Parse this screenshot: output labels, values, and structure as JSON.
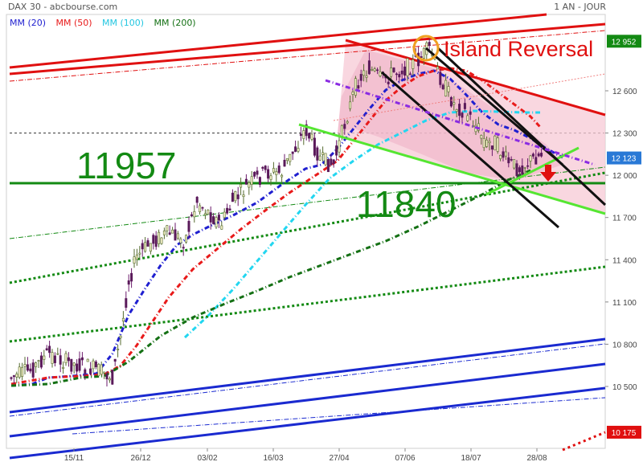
{
  "header": {
    "title": "DAX 30 - abcbourse.com",
    "period": "1 AN - JOUR"
  },
  "legend": [
    {
      "label": "MM (20)",
      "color": "#1f1fd0"
    },
    {
      "label": "MM (50)",
      "color": "#e81a1a"
    },
    {
      "label": "MM (100)",
      "color": "#22d6f0"
    },
    {
      "label": "MM (200)",
      "color": "#147014"
    }
  ],
  "chart_data": {
    "type": "candlestick",
    "y_ticks": [
      10500,
      10800,
      11100,
      11400,
      11700,
      12000,
      12300,
      12600
    ],
    "ylim": [
      10175,
      12952
    ],
    "x_ticks": [
      "15/11",
      "26/12",
      "03/02",
      "16/03",
      "27/04",
      "07/06",
      "18/07",
      "28/08"
    ],
    "price_tags": [
      {
        "label": "12 952",
        "value": 12952,
        "color": "#138a13"
      },
      {
        "label": "12 123",
        "value": 12123,
        "color": "#2979d6"
      },
      {
        "label": "10 175",
        "value": 10175,
        "color": "#e01010"
      }
    ],
    "annotations": [
      {
        "text": "Island Reversal",
        "color": "#e01010"
      },
      {
        "text": "11957",
        "color": "#138a13",
        "value": 11957
      },
      {
        "text": "11840",
        "color": "#138a13",
        "value": 11840
      }
    ],
    "dashed_level": 12300
  }
}
